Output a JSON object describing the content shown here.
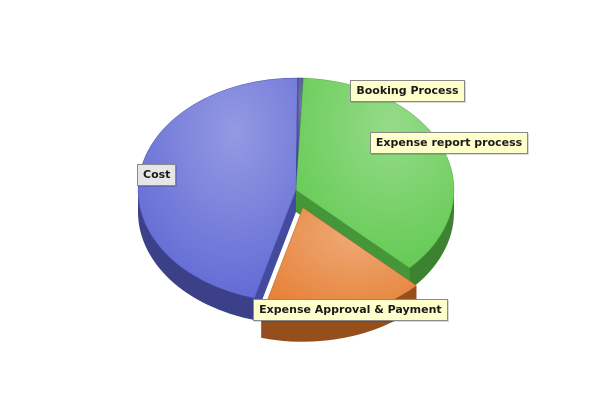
{
  "chart_data": {
    "type": "pie",
    "style": "3d-exploded",
    "slices": [
      {
        "label": "Booking Process",
        "value": 0.6,
        "color": "#2b2f7a"
      },
      {
        "label": "Expense report process",
        "value": 36.5,
        "color": "#5cc84a"
      },
      {
        "label": "Expense Approval & Payment",
        "value": 17.0,
        "color": "#e57a2c"
      },
      {
        "label": "Cost",
        "value": 45.9,
        "color": "#5a63d3"
      }
    ],
    "exploded": [
      "Expense Approval & Payment"
    ],
    "legend": "none",
    "label_style": "callout"
  }
}
